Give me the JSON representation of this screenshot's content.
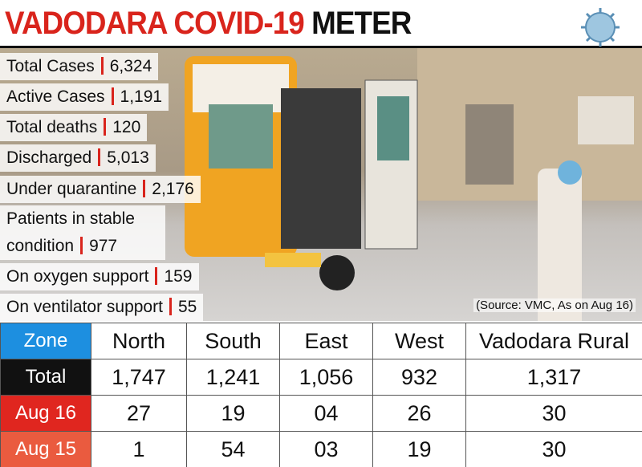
{
  "header": {
    "title_red": "VADODARA COVID-19",
    "title_black": "METER"
  },
  "stats": [
    {
      "label": "Total Cases",
      "value": "6,324"
    },
    {
      "label": "Active Cases",
      "value": "1,191"
    },
    {
      "label": "Total deaths",
      "value": "120"
    },
    {
      "label": "Discharged",
      "value": "5,013"
    },
    {
      "label": "Under quarantine",
      "value": "2,176"
    },
    {
      "label": "Patients in stable condition",
      "value": "977"
    },
    {
      "label": "On oxygen support",
      "value": "159"
    },
    {
      "label": "On ventilator support",
      "value": "55"
    }
  ],
  "source": "(Source: VMC, As on Aug 16)",
  "table": {
    "header": [
      "Zone",
      "North",
      "South",
      "East",
      "West",
      "Vadodara Rural"
    ],
    "rows": [
      [
        "Total",
        "1,747",
        "1,241",
        "1,056",
        "932",
        "1,317"
      ],
      [
        "Aug 16",
        "27",
        "19",
        "04",
        "26",
        "30"
      ],
      [
        "Aug 15",
        "1",
        "54",
        "03",
        "19",
        "30"
      ]
    ]
  }
}
